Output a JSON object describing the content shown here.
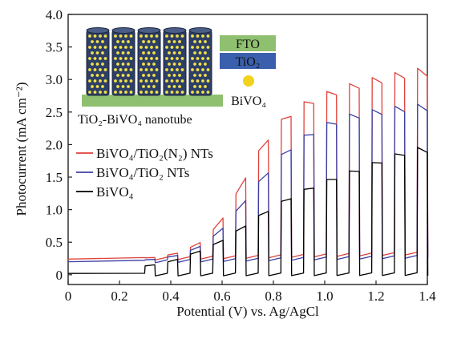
{
  "chart_data": {
    "type": "line",
    "xlabel": "Potential (V) vs. Ag/AgCl",
    "ylabel": "Photocurrent (mA cm⁻²)",
    "xlim": [
      0,
      1.4
    ],
    "ylim": [
      -0.15,
      4.0
    ],
    "xticks": [
      "0",
      "0.2",
      "0.4",
      "0.6",
      "0.8",
      "1.0",
      "1.2",
      "1.4"
    ],
    "yticks": [
      "0",
      "0.5",
      "1.0",
      "1.5",
      "2.0",
      "2.5",
      "3.0",
      "3.5",
      "4.0"
    ],
    "grid": false,
    "legend_position": "center-left",
    "chopped_light": {
      "period_v": 0.0885,
      "first_on_v": 0.298,
      "on_fraction": 0.45
    },
    "series": [
      {
        "name": "BiVO₄/TiO₂(N₂) NTs",
        "color": "#e0413a",
        "light_on": {
          "x": [
            0.3,
            0.35,
            0.4,
            0.45,
            0.5,
            0.55,
            0.6,
            0.65,
            0.7,
            0.75,
            0.8,
            0.85,
            0.9,
            0.95,
            1.0,
            1.05,
            1.1,
            1.15,
            1.2,
            1.25,
            1.3,
            1.35
          ],
          "y": [
            0.25,
            0.27,
            0.3,
            0.36,
            0.45,
            0.6,
            0.85,
            1.18,
            1.55,
            1.9,
            2.18,
            2.38,
            2.52,
            2.62,
            2.7,
            2.77,
            2.83,
            2.88,
            2.93,
            2.97,
            3.01,
            3.05
          ]
        },
        "dark_start": 0.24,
        "dark_end": 0.35
      },
      {
        "name": "BiVO₄/TiO₂ NTs",
        "color": "#3b3fa3",
        "light_on": {
          "x": [
            0.3,
            0.35,
            0.4,
            0.45,
            0.5,
            0.55,
            0.6,
            0.65,
            0.7,
            0.75,
            0.8,
            0.85,
            0.9,
            0.95,
            1.0,
            1.05,
            1.1,
            1.15,
            1.2,
            1.25,
            1.3,
            1.35
          ],
          "y": [
            0.22,
            0.24,
            0.27,
            0.32,
            0.4,
            0.52,
            0.7,
            0.93,
            1.18,
            1.42,
            1.66,
            1.86,
            2.02,
            2.14,
            2.24,
            2.32,
            2.38,
            2.42,
            2.45,
            2.48,
            2.5,
            2.52
          ]
        },
        "dark_start": 0.2,
        "dark_end": 0.3
      },
      {
        "name": "BiVO₄",
        "color": "#000000",
        "light_on": {
          "x": [
            0.3,
            0.35,
            0.4,
            0.45,
            0.5,
            0.55,
            0.6,
            0.65,
            0.7,
            0.75,
            0.8,
            0.85,
            0.9,
            0.95,
            1.0,
            1.05,
            1.1,
            1.15,
            1.2,
            1.25,
            1.3,
            1.35
          ],
          "y": [
            0.13,
            0.16,
            0.2,
            0.27,
            0.34,
            0.42,
            0.52,
            0.64,
            0.77,
            0.9,
            1.02,
            1.13,
            1.23,
            1.32,
            1.4,
            1.47,
            1.54,
            1.61,
            1.68,
            1.76,
            1.82,
            1.88
          ]
        },
        "dark_start": 0.02,
        "dark_end": 0.03
      }
    ]
  },
  "legend": {
    "items": [
      {
        "label": "BiVO₄/TiO₂(N₂) NTs",
        "color": "#e0413a"
      },
      {
        "label": "BiVO₄/TiO₂ NTs",
        "color": "#3b3fa3"
      },
      {
        "label": "BiVO₄",
        "color": "#000000"
      }
    ]
  },
  "inset": {
    "caption": "TiO₂-BiVO₄ nanotube",
    "tube_count": 5,
    "tube_fill": "#2e3f66",
    "dot_color": "#f2e24a",
    "substrate_color": "#8fc06f",
    "layers": [
      {
        "label": "FTO",
        "color": "#8fc06f"
      },
      {
        "label": "TiO₂",
        "color": "#3a5fad"
      }
    ],
    "particle_label": "BiVO₄",
    "particle_color": "#f2d21a"
  }
}
